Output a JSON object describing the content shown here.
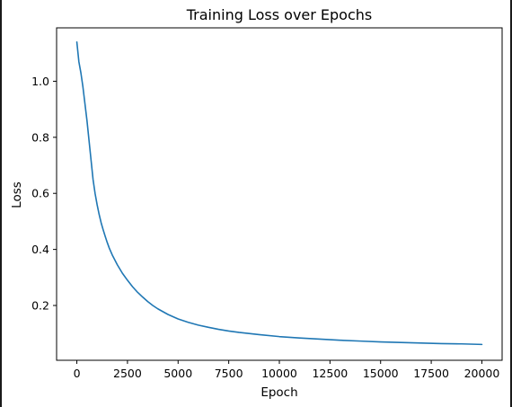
{
  "chart_data": {
    "type": "line",
    "title": "Training Loss over Epochs",
    "xlabel": "Epoch",
    "ylabel": "Loss",
    "xlim": [
      -1000,
      21000
    ],
    "ylim": [
      0.0045,
      1.1905
    ],
    "xticks": [
      0,
      2500,
      5000,
      7500,
      10000,
      12500,
      15000,
      17500,
      20000
    ],
    "yticks": [
      0.2,
      0.4,
      0.6,
      0.8,
      1.0
    ],
    "ytick_labels": [
      "0.2",
      "0.4",
      "0.6",
      "0.8",
      "1.0"
    ],
    "grid": false,
    "legend": "none",
    "series": [
      {
        "color": "#1f77b4",
        "x": [
          0,
          100,
          200,
          300,
          400,
          500,
          600,
          700,
          800,
          900,
          1000,
          1100,
          1200,
          1300,
          1400,
          1500,
          1600,
          1750,
          2000,
          2250,
          2500,
          2750,
          3000,
          3250,
          3500,
          3750,
          4000,
          4500,
          5000,
          5500,
          6000,
          6500,
          7000,
          7500,
          8000,
          9000,
          10000,
          11000,
          12000,
          13000,
          14000,
          15000,
          16000,
          17000,
          18000,
          19000,
          20000
        ],
        "y": [
          1.14,
          1.07,
          1.03,
          0.98,
          0.92,
          0.86,
          0.79,
          0.72,
          0.65,
          0.6,
          0.56,
          0.525,
          0.495,
          0.47,
          0.447,
          0.425,
          0.405,
          0.38,
          0.345,
          0.315,
          0.29,
          0.267,
          0.247,
          0.23,
          0.214,
          0.2,
          0.188,
          0.168,
          0.152,
          0.14,
          0.13,
          0.122,
          0.115,
          0.109,
          0.104,
          0.096,
          0.089,
          0.084,
          0.08,
          0.076,
          0.073,
          0.07,
          0.068,
          0.066,
          0.064,
          0.063,
          0.061
        ]
      }
    ]
  }
}
